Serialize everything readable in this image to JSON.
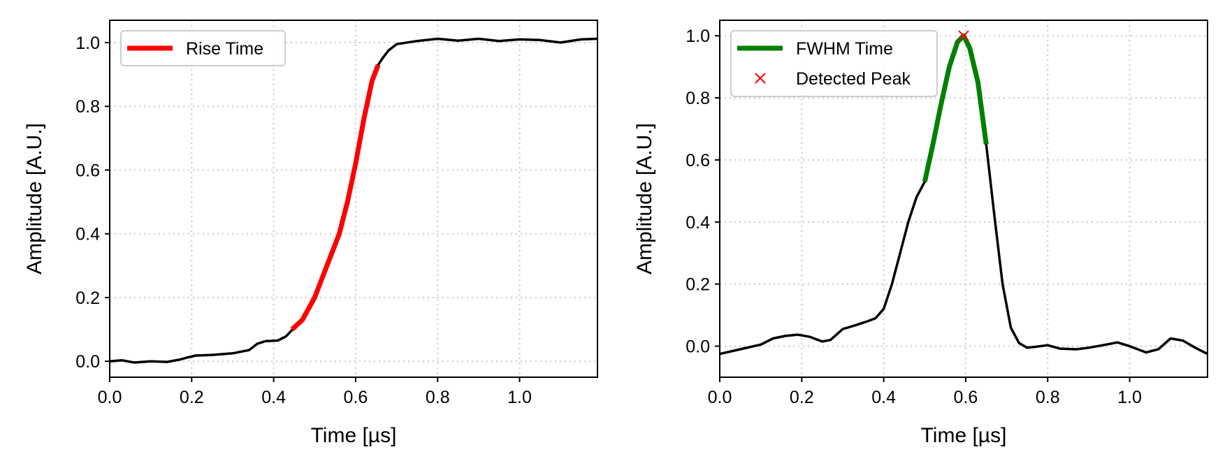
{
  "chart_data": [
    {
      "type": "line",
      "title": "",
      "xlabel": "Time [µs]",
      "ylabel": "Amplitude [A.U.]",
      "xlim": [
        0.0,
        1.19
      ],
      "ylim": [
        -0.05,
        1.07
      ],
      "xticks": [
        0.0,
        0.2,
        0.4,
        0.6,
        0.8,
        1.0
      ],
      "xtick_labels": [
        "0.0",
        "0.2",
        "0.4",
        "0.6",
        "0.8",
        "1.0"
      ],
      "yticks": [
        0.0,
        0.2,
        0.4,
        0.6,
        0.8,
        1.0
      ],
      "ytick_labels": [
        "0.0",
        "0.2",
        "0.4",
        "0.6",
        "0.8",
        "1.0"
      ],
      "grid": true,
      "legend_position": "upper-left",
      "series": [
        {
          "name": "",
          "color": "#000000",
          "x": [
            0.0,
            0.03,
            0.06,
            0.1,
            0.14,
            0.17,
            0.19,
            0.21,
            0.25,
            0.3,
            0.34,
            0.36,
            0.38,
            0.41,
            0.43,
            0.45,
            0.47,
            0.5,
            0.53,
            0.56,
            0.58,
            0.6,
            0.62,
            0.64,
            0.655,
            0.665,
            0.68,
            0.7,
            0.75,
            0.8,
            0.85,
            0.9,
            0.95,
            1.0,
            1.05,
            1.1,
            1.15,
            1.19
          ],
          "y": [
            0.0,
            0.003,
            -0.004,
            0.0,
            -0.002,
            0.005,
            0.012,
            0.018,
            0.02,
            0.025,
            0.035,
            0.055,
            0.063,
            0.065,
            0.078,
            0.105,
            0.13,
            0.2,
            0.3,
            0.4,
            0.5,
            0.62,
            0.76,
            0.88,
            0.93,
            0.95,
            0.975,
            0.995,
            1.005,
            1.012,
            1.006,
            1.012,
            1.005,
            1.01,
            1.008,
            1.0,
            1.01,
            1.012
          ]
        },
        {
          "name": "Rise Time",
          "color": "#ff0000",
          "x": [
            0.445,
            0.47,
            0.5,
            0.53,
            0.56,
            0.58,
            0.6,
            0.62,
            0.64,
            0.655
          ],
          "y": [
            0.1,
            0.13,
            0.2,
            0.3,
            0.4,
            0.5,
            0.62,
            0.76,
            0.88,
            0.93
          ]
        }
      ]
    },
    {
      "type": "line",
      "title": "",
      "xlabel": "Time [µs]",
      "ylabel": "Amplitude [A.U.]",
      "xlim": [
        0.0,
        1.19
      ],
      "ylim": [
        -0.1,
        1.05
      ],
      "xticks": [
        0.0,
        0.2,
        0.4,
        0.6,
        0.8,
        1.0
      ],
      "xtick_labels": [
        "0.0",
        "0.2",
        "0.4",
        "0.6",
        "0.8",
        "1.0"
      ],
      "yticks": [
        0.0,
        0.2,
        0.4,
        0.6,
        0.8,
        1.0
      ],
      "ytick_labels": [
        "0.0",
        "0.2",
        "0.4",
        "0.6",
        "0.8",
        "1.0"
      ],
      "grid": true,
      "legend_position": "upper-left",
      "series": [
        {
          "name": "",
          "color": "#000000",
          "x": [
            0.0,
            0.05,
            0.1,
            0.13,
            0.16,
            0.19,
            0.22,
            0.25,
            0.27,
            0.3,
            0.33,
            0.36,
            0.38,
            0.4,
            0.42,
            0.44,
            0.46,
            0.48,
            0.5,
            0.52,
            0.54,
            0.56,
            0.58,
            0.595,
            0.61,
            0.63,
            0.65,
            0.67,
            0.69,
            0.71,
            0.73,
            0.75,
            0.77,
            0.8,
            0.83,
            0.87,
            0.9,
            0.93,
            0.97,
            1.0,
            1.04,
            1.07,
            1.1,
            1.13,
            1.16,
            1.19
          ],
          "y": [
            -0.025,
            -0.01,
            0.005,
            0.025,
            0.033,
            0.037,
            0.03,
            0.015,
            0.02,
            0.055,
            0.067,
            0.08,
            0.09,
            0.12,
            0.2,
            0.3,
            0.4,
            0.48,
            0.53,
            0.65,
            0.78,
            0.9,
            0.98,
            1.0,
            0.96,
            0.85,
            0.65,
            0.42,
            0.2,
            0.06,
            0.01,
            -0.005,
            -0.002,
            0.003,
            -0.008,
            -0.01,
            -0.005,
            0.002,
            0.012,
            0.0,
            -0.02,
            -0.01,
            0.025,
            0.018,
            -0.005,
            -0.025
          ]
        },
        {
          "name": "FWHM Time",
          "color": "#008000",
          "x": [
            0.5,
            0.52,
            0.54,
            0.56,
            0.58,
            0.595,
            0.61,
            0.63,
            0.65
          ],
          "y": [
            0.53,
            0.65,
            0.78,
            0.9,
            0.98,
            1.0,
            0.96,
            0.85,
            0.65
          ]
        },
        {
          "name": "Detected Peak",
          "color": "#ff0000",
          "marker": "x",
          "x": [
            0.595
          ],
          "y": [
            1.0
          ]
        }
      ]
    }
  ]
}
